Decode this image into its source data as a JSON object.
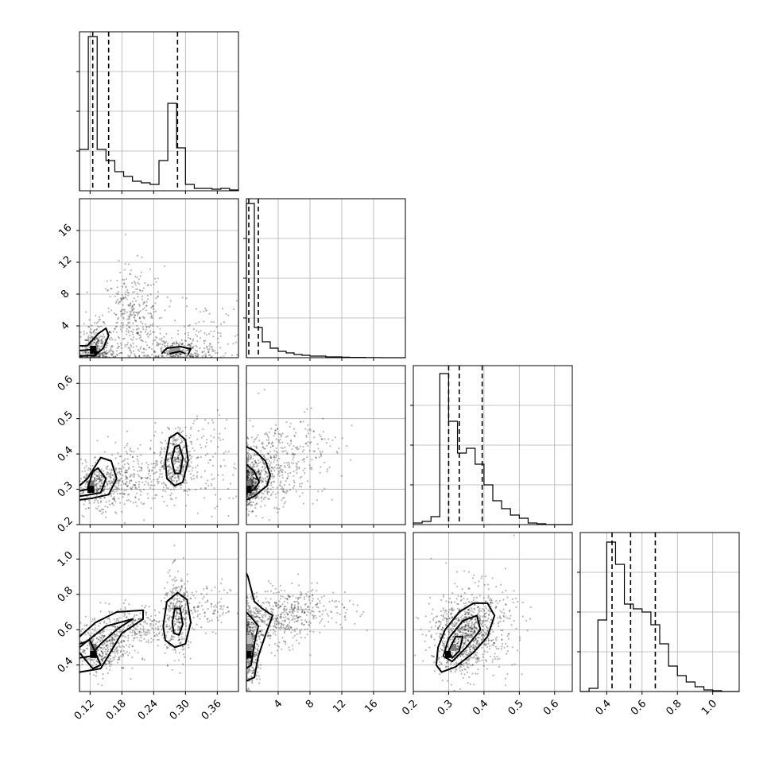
{
  "chart_data": {
    "type": "corner",
    "grid": true,
    "parameters": [
      {
        "range": [
          0.1,
          0.4
        ],
        "ticks": [
          0.12,
          0.18,
          0.24,
          0.3,
          0.36
        ],
        "tick_labels": [
          "0.12",
          "0.18",
          "0.24",
          "0.30",
          "0.36"
        ],
        "quantiles": [
          0.125,
          0.155,
          0.285
        ],
        "histogram": [
          0.26,
          0.97,
          0.26,
          0.19,
          0.12,
          0.09,
          0.06,
          0.05,
          0.04,
          0.19,
          0.55,
          0.27,
          0.04,
          0.015,
          0.015,
          0.01,
          0.015,
          0.005
        ]
      },
      {
        "range": [
          0.0,
          20.0
        ],
        "ticks": [
          4,
          8,
          12,
          16
        ],
        "tick_labels": [
          "4",
          "8",
          "12",
          "16"
        ],
        "quantiles": [
          0.3,
          1.5
        ],
        "histogram": [
          0.97,
          0.19,
          0.1,
          0.06,
          0.04,
          0.03,
          0.02,
          0.015,
          0.01,
          0.01,
          0.005,
          0.005,
          0.003,
          0.002,
          0.002,
          0.001,
          0.001,
          0.0,
          0.0,
          0.0
        ]
      },
      {
        "range": [
          0.2,
          0.65
        ],
        "ticks": [
          0.2,
          0.3,
          0.4,
          0.5,
          0.6
        ],
        "tick_labels": [
          "0.2",
          "0.3",
          "0.4",
          "0.5",
          "0.6"
        ],
        "quantiles": [
          0.3,
          0.33,
          0.395
        ],
        "histogram": [
          0.01,
          0.02,
          0.05,
          0.95,
          0.65,
          0.45,
          0.48,
          0.38,
          0.25,
          0.15,
          0.1,
          0.06,
          0.04,
          0.01,
          0.005,
          0.0,
          0.0,
          0.0
        ]
      },
      {
        "range": [
          0.25,
          1.15
        ],
        "ticks": [
          0.4,
          0.6,
          0.8,
          1.0
        ],
        "tick_labels": [
          "0.4",
          "0.6",
          "0.8",
          "1.0"
        ],
        "quantiles": [
          0.43,
          0.535,
          0.675
        ],
        "histogram": [
          0.0,
          0.02,
          0.45,
          0.94,
          0.8,
          0.55,
          0.52,
          0.5,
          0.42,
          0.3,
          0.16,
          0.1,
          0.06,
          0.03,
          0.01,
          0.005,
          0.0,
          0.0
        ]
      }
    ],
    "pairs": [
      {
        "row": 1,
        "col": 0,
        "tick_labels": [
          "4",
          "8",
          "12",
          "16"
        ],
        "clusters": [
          {
            "cx": 0.13,
            "cy": 1.0,
            "sx": 0.018,
            "sy": 1.5,
            "n": 340
          },
          {
            "cx": 0.2,
            "cy": 5.0,
            "sx": 0.03,
            "sy": 3.2,
            "n": 360
          },
          {
            "cx": 0.28,
            "cy": 0.7,
            "sx": 0.03,
            "sy": 1.0,
            "n": 220
          },
          {
            "cx": 0.33,
            "cy": 2.0,
            "sx": 0.04,
            "sy": 2.5,
            "n": 120
          }
        ],
        "contours": [
          [
            [
              0.1,
              1.5
            ],
            [
              0.115,
              1.5
            ],
            [
              0.135,
              3.0
            ],
            [
              0.15,
              3.7
            ],
            [
              0.155,
              2.8
            ],
            [
              0.145,
              1.2
            ],
            [
              0.13,
              0.3
            ],
            [
              0.1,
              0.2
            ]
          ],
          [
            [
              0.1,
              0.9
            ],
            [
              0.12,
              1.0
            ],
            [
              0.135,
              0.7
            ],
            [
              0.125,
              0.2
            ]
          ],
          [
            [
              0.255,
              0.5
            ],
            [
              0.265,
              1.2
            ],
            [
              0.29,
              1.4
            ],
            [
              0.31,
              1.1
            ],
            [
              0.305,
              0.4
            ]
          ],
          [
            [
              0.27,
              0.5
            ],
            [
              0.29,
              0.8
            ],
            [
              0.3,
              0.5
            ]
          ]
        ],
        "dense_cells": [
          {
            "x": 0.12,
            "y": 0.5,
            "w": 0.012,
            "h": 1.0,
            "shade": "#000000"
          },
          {
            "x": 0.27,
            "y": 0.5,
            "w": 0.02,
            "h": 0.8,
            "shade": "#9a9a9a"
          }
        ]
      },
      {
        "row": 2,
        "col": 0,
        "tick_labels": [
          "0.2",
          "0.3",
          "0.4",
          "0.5",
          "0.6"
        ],
        "clusters": [
          {
            "cx": 0.14,
            "cy": 0.31,
            "sx": 0.025,
            "sy": 0.03,
            "n": 360
          },
          {
            "cx": 0.28,
            "cy": 0.38,
            "sx": 0.015,
            "sy": 0.045,
            "n": 320
          },
          {
            "cx": 0.21,
            "cy": 0.34,
            "sx": 0.04,
            "sy": 0.05,
            "n": 240
          },
          {
            "cx": 0.34,
            "cy": 0.38,
            "sx": 0.04,
            "sy": 0.07,
            "n": 140
          }
        ],
        "contours": [
          [
            [
              0.1,
              0.31
            ],
            [
              0.115,
              0.33
            ],
            [
              0.14,
              0.39
            ],
            [
              0.16,
              0.38
            ],
            [
              0.17,
              0.33
            ],
            [
              0.155,
              0.285
            ],
            [
              0.125,
              0.275
            ],
            [
              0.1,
              0.27
            ]
          ],
          [
            [
              0.1,
              0.295
            ],
            [
              0.115,
              0.3
            ],
            [
              0.125,
              0.35
            ],
            [
              0.135,
              0.36
            ],
            [
              0.15,
              0.33
            ],
            [
              0.14,
              0.29
            ],
            [
              0.1,
              0.28
            ]
          ],
          [
            [
              0.262,
              0.38
            ],
            [
              0.27,
              0.445
            ],
            [
              0.285,
              0.46
            ],
            [
              0.3,
              0.44
            ],
            [
              0.305,
              0.38
            ],
            [
              0.295,
              0.32
            ],
            [
              0.28,
              0.31
            ],
            [
              0.265,
              0.33
            ],
            [
              0.262,
              0.38
            ]
          ],
          [
            [
              0.274,
              0.38
            ],
            [
              0.28,
              0.42
            ],
            [
              0.288,
              0.425
            ],
            [
              0.295,
              0.39
            ],
            [
              0.29,
              0.345
            ],
            [
              0.28,
              0.345
            ],
            [
              0.274,
              0.38
            ]
          ]
        ],
        "dense_cells": [
          {
            "x": 0.115,
            "y": 0.29,
            "w": 0.013,
            "h": 0.02,
            "shade": "#000000"
          },
          {
            "x": 0.115,
            "y": 0.31,
            "w": 0.013,
            "h": 0.015,
            "shade": "#7a7a7a"
          }
        ]
      },
      {
        "row": 3,
        "col": 0,
        "tick_labels": [
          "0.4",
          "0.6",
          "0.8",
          "1.0"
        ],
        "clusters": [
          {
            "cx": 0.14,
            "cy": 0.5,
            "sx": 0.025,
            "sy": 0.07,
            "n": 380
          },
          {
            "cx": 0.2,
            "cy": 0.62,
            "sx": 0.03,
            "sy": 0.06,
            "n": 240
          },
          {
            "cx": 0.285,
            "cy": 0.68,
            "sx": 0.014,
            "sy": 0.12,
            "n": 320
          },
          {
            "cx": 0.34,
            "cy": 0.72,
            "sx": 0.035,
            "sy": 0.06,
            "n": 120
          }
        ],
        "contours": [
          [
            [
              0.1,
              0.36
            ],
            [
              0.14,
              0.38
            ],
            [
              0.16,
              0.48
            ],
            [
              0.18,
              0.58
            ],
            [
              0.22,
              0.66
            ],
            [
              0.22,
              0.71
            ],
            [
              0.17,
              0.7
            ],
            [
              0.13,
              0.64
            ],
            [
              0.1,
              0.56
            ]
          ],
          [
            [
              0.1,
              0.44
            ],
            [
              0.12,
              0.45
            ],
            [
              0.14,
              0.52
            ],
            [
              0.17,
              0.6
            ],
            [
              0.2,
              0.66
            ],
            [
              0.15,
              0.62
            ],
            [
              0.1,
              0.5
            ]
          ],
          [
            [
              0.1,
              0.52
            ],
            [
              0.12,
              0.54
            ],
            [
              0.14,
              0.4
            ],
            [
              0.125,
              0.38
            ],
            [
              0.1,
              0.47
            ]
          ],
          [
            [
              0.258,
              0.62
            ],
            [
              0.265,
              0.76
            ],
            [
              0.285,
              0.81
            ],
            [
              0.303,
              0.77
            ],
            [
              0.31,
              0.64
            ],
            [
              0.3,
              0.52
            ],
            [
              0.28,
              0.5
            ],
            [
              0.262,
              0.54
            ],
            [
              0.258,
              0.62
            ]
          ],
          [
            [
              0.275,
              0.64
            ],
            [
              0.28,
              0.72
            ],
            [
              0.29,
              0.72
            ],
            [
              0.295,
              0.63
            ],
            [
              0.288,
              0.57
            ],
            [
              0.278,
              0.58
            ],
            [
              0.275,
              0.64
            ]
          ]
        ],
        "dense_cells": [
          {
            "x": 0.12,
            "y": 0.44,
            "w": 0.012,
            "h": 0.04,
            "shade": "#000000"
          },
          {
            "x": 0.12,
            "y": 0.48,
            "w": 0.012,
            "h": 0.04,
            "shade": "#707070"
          }
        ]
      },
      {
        "row": 2,
        "col": 1,
        "tick_labels": [
          "0.2",
          "0.3",
          "0.4",
          "0.5",
          "0.6"
        ],
        "clusters": [
          {
            "cx": 0.5,
            "cy": 0.31,
            "sx": 0.6,
            "sy": 0.03,
            "n": 420
          },
          {
            "cx": 2.5,
            "cy": 0.36,
            "sx": 2.0,
            "sy": 0.05,
            "n": 360
          },
          {
            "cx": 6.0,
            "cy": 0.4,
            "sx": 3.0,
            "sy": 0.06,
            "n": 180
          }
        ],
        "contours": [
          [
            [
              0.0,
              0.27
            ],
            [
              1.0,
              0.28
            ],
            [
              2.6,
              0.31
            ],
            [
              3.0,
              0.34
            ],
            [
              2.4,
              0.38
            ],
            [
              1.0,
              0.41
            ],
            [
              0.0,
              0.42
            ]
          ],
          [
            [
              0.0,
              0.29
            ],
            [
              1.0,
              0.3
            ],
            [
              1.6,
              0.32
            ],
            [
              1.0,
              0.35
            ],
            [
              0.0,
              0.37
            ]
          ]
        ],
        "dense_cells": [
          {
            "x": 0.05,
            "y": 0.29,
            "w": 0.6,
            "h": 0.02,
            "shade": "#000000"
          },
          {
            "x": 0.05,
            "y": 0.31,
            "w": 0.6,
            "h": 0.015,
            "shade": "#7a7a7a"
          }
        ]
      },
      {
        "row": 3,
        "col": 1,
        "tick_labels": [
          "0.4",
          "0.6",
          "0.8",
          "1.0"
        ],
        "clusters": [
          {
            "cx": 0.5,
            "cy": 0.5,
            "sx": 0.6,
            "sy": 0.1,
            "n": 420
          },
          {
            "cx": 3.5,
            "cy": 0.65,
            "sx": 2.5,
            "sy": 0.08,
            "n": 380
          },
          {
            "cx": 8.0,
            "cy": 0.72,
            "sx": 3.0,
            "sy": 0.06,
            "n": 160
          }
        ],
        "contours": [
          [
            [
              0.0,
              0.31
            ],
            [
              1.0,
              0.33
            ],
            [
              1.5,
              0.45
            ],
            [
              2.4,
              0.57
            ],
            [
              3.3,
              0.68
            ],
            [
              2.0,
              0.72
            ],
            [
              1.0,
              0.76
            ],
            [
              0.2,
              0.9
            ],
            [
              0.0,
              0.92
            ]
          ],
          [
            [
              0.0,
              0.38
            ],
            [
              0.6,
              0.4
            ],
            [
              1.0,
              0.52
            ],
            [
              1.5,
              0.62
            ],
            [
              0.8,
              0.66
            ],
            [
              0.0,
              0.7
            ]
          ]
        ],
        "dense_cells": [
          {
            "x": 0.05,
            "y": 0.44,
            "w": 0.6,
            "h": 0.04,
            "shade": "#000000"
          },
          {
            "x": 0.05,
            "y": 0.48,
            "w": 0.6,
            "h": 0.04,
            "shade": "#707070"
          },
          {
            "x": 0.05,
            "y": 0.52,
            "w": 0.6,
            "h": 0.05,
            "shade": "#c0c0c0"
          }
        ]
      },
      {
        "row": 3,
        "col": 2,
        "tick_labels": [
          "0.4",
          "0.6",
          "0.8",
          "1.0"
        ],
        "clusters": [
          {
            "cx": 0.33,
            "cy": 0.55,
            "sx": 0.04,
            "sy": 0.1,
            "n": 520
          },
          {
            "cx": 0.38,
            "cy": 0.62,
            "sx": 0.055,
            "sy": 0.12,
            "n": 480
          }
        ],
        "contours": [
          [
            [
              0.265,
              0.4
            ],
            [
              0.27,
              0.5
            ],
            [
              0.29,
              0.6
            ],
            [
              0.33,
              0.7
            ],
            [
              0.37,
              0.75
            ],
            [
              0.41,
              0.75
            ],
            [
              0.43,
              0.68
            ],
            [
              0.41,
              0.56
            ],
            [
              0.37,
              0.47
            ],
            [
              0.32,
              0.39
            ],
            [
              0.28,
              0.36
            ],
            [
              0.265,
              0.4
            ]
          ],
          [
            [
              0.285,
              0.45
            ],
            [
              0.3,
              0.55
            ],
            [
              0.34,
              0.65
            ],
            [
              0.38,
              0.68
            ],
            [
              0.39,
              0.6
            ],
            [
              0.35,
              0.5
            ],
            [
              0.31,
              0.42
            ],
            [
              0.285,
              0.45
            ]
          ],
          [
            [
              0.3,
              0.48
            ],
            [
              0.32,
              0.56
            ],
            [
              0.34,
              0.56
            ],
            [
              0.33,
              0.48
            ],
            [
              0.31,
              0.44
            ],
            [
              0.3,
              0.48
            ]
          ]
        ],
        "dense_cells": [
          {
            "x": 0.29,
            "y": 0.44,
            "w": 0.016,
            "h": 0.04,
            "shade": "#000000"
          },
          {
            "x": 0.306,
            "y": 0.48,
            "w": 0.016,
            "h": 0.04,
            "shade": "#808080"
          }
        ]
      }
    ]
  }
}
